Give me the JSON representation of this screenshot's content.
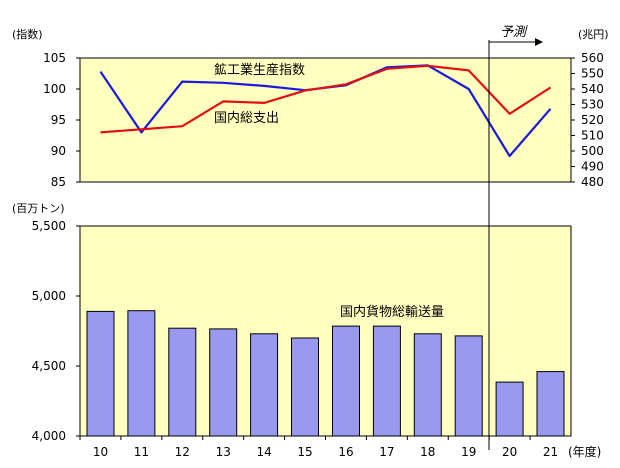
{
  "chart_data": [
    {
      "type": "line",
      "categories": [
        "10",
        "11",
        "12",
        "13",
        "14",
        "15",
        "16",
        "17",
        "18",
        "19",
        "20",
        "21"
      ],
      "left_unit": "(指数)",
      "right_unit": "(兆円)",
      "left_ticks": [
        "105",
        "100",
        "95",
        "90",
        "85"
      ],
      "right_ticks": [
        "560",
        "550",
        "540",
        "530",
        "520",
        "510",
        "500",
        "490",
        "480"
      ],
      "ylim_left": [
        85,
        105
      ],
      "ylim_right": [
        480,
        560
      ],
      "series": [
        {
          "name": "鉱工業生産指数",
          "axis": "left",
          "color": "#1a1adb",
          "values": [
            102.8,
            93.0,
            101.2,
            101.0,
            100.5,
            99.8,
            100.6,
            103.5,
            103.8,
            100.0,
            89.2,
            96.8
          ]
        },
        {
          "name": "国内総支出",
          "axis": "right",
          "color": "#e01010",
          "values": [
            512,
            514,
            516,
            532,
            531,
            539,
            543,
            553,
            555,
            552,
            524,
            541
          ]
        }
      ],
      "grid": false
    },
    {
      "type": "bar",
      "categories": [
        "10",
        "11",
        "12",
        "13",
        "14",
        "15",
        "16",
        "17",
        "18",
        "19",
        "20",
        "21"
      ],
      "left_unit": "(百万トン)",
      "y_ticks": [
        "5,500",
        "5,000",
        "4,500",
        "4,000"
      ],
      "ylim": [
        4000,
        5500
      ],
      "series": [
        {
          "name": "国内貨物総輸送量",
          "color": "#9999f0",
          "values": [
            4890,
            4895,
            4770,
            4765,
            4730,
            4700,
            4785,
            4785,
            4730,
            4715,
            4385,
            4460
          ]
        }
      ],
      "x_unit": "(年度)",
      "grid": false
    }
  ],
  "forecast_label": "予測"
}
